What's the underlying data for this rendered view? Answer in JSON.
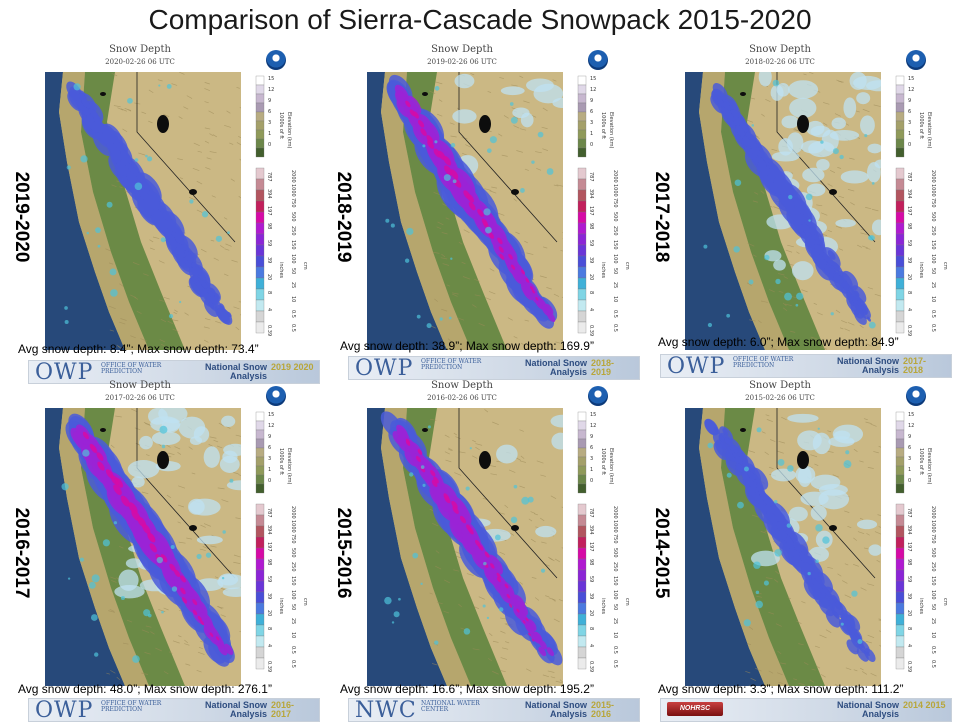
{
  "title": "Comparison of Sierra-Cascade Snowpack 2015-2020",
  "map_header": {
    "title": "Snow Depth"
  },
  "panels": [
    {
      "season": "2019-2020",
      "date": "2020-02-26 06 UTC",
      "stats": "Avg snow depth: 8.4”;  Max snow depth: 73.4”",
      "banner": {
        "logo": "OWP",
        "sub": "OFFICE OF WATER PREDICTION",
        "name": "National Snow Analysis",
        "year": "2019 2020"
      },
      "snow_intensity": 0.35,
      "pale_extent": 0.05
    },
    {
      "season": "2018-2019",
      "date": "2019-02-26 06 UTC",
      "stats": "Avg snow depth: 38.9”;  Max snow depth: 169.9”",
      "banner": {
        "logo": "OWP",
        "sub": "OFFICE OF WATER PREDICTION",
        "name": "National Snow Analysis",
        "year": "2018- 2019"
      },
      "snow_intensity": 0.85,
      "pale_extent": 0.2
    },
    {
      "season": "2017-2018",
      "date": "2018-02-26 06 UTC",
      "stats": "Avg snow depth: 6.0”;  Max snow depth: 84.9”",
      "banner": {
        "logo": "OWP",
        "sub": "OFFICE OF WATER PREDICTION",
        "name": "National Snow Analysis",
        "year": "2017- 2018"
      },
      "snow_intensity": 0.3,
      "pale_extent": 0.7
    },
    {
      "season": "2016-2017",
      "date": "2017-02-26 06 UTC",
      "stats": "Avg snow depth: 48.0”;  Max snow depth: 276.1”",
      "banner": {
        "logo": "OWP",
        "sub": "OFFICE OF WATER PREDICTION",
        "name": "National Snow Analysis",
        "year": "2016- 2017"
      },
      "snow_intensity": 0.95,
      "pale_extent": 0.6
    },
    {
      "season": "2015-2016",
      "date": "2016-02-26 06 UTC",
      "stats": "Avg snow depth: 16.6”;  Max snow depth: 195.2”",
      "banner": {
        "logo": "NWC",
        "sub": "NATIONAL WATER CENTER",
        "name": "National Snow Analysis",
        "year": "2015- 2016"
      },
      "snow_intensity": 0.7,
      "pale_extent": 0.1
    },
    {
      "season": "2014-2015",
      "date": "2015-02-26 06 UTC",
      "stats": "Avg snow depth: 3.3”;  Max snow depth: 111.2”",
      "banner": {
        "logo": "NOHRSC",
        "sub": "",
        "name": "National Snow Analysis",
        "year": "2014 2015"
      },
      "snow_intensity": 0.2,
      "pale_extent": 0.4
    }
  ],
  "legend": {
    "elevation_ticks_ft": [
      "15",
      "12",
      "9",
      "6",
      "3",
      "1",
      "0"
    ],
    "elevation_unit_ft": "1000s of ft",
    "elevation_unit_km": "Elevation (km)",
    "snow_ticks_in": [
      "787",
      "394",
      "197",
      "98",
      "59",
      "39",
      "20",
      "8",
      "4",
      "0.39"
    ],
    "snow_ticks_cm": [
      "2000",
      "1000",
      "750",
      "500",
      "250",
      "150",
      "100",
      "50",
      "25",
      "10",
      "0.5",
      "0.5"
    ],
    "unit_in": "inches",
    "unit_cm": "cm"
  },
  "colors": {
    "ocean": "#27497a",
    "valley": "#6b8a46",
    "foothill": "#b6a66d",
    "mountain": "#cbb884",
    "snow_pale": "#bfe2f2",
    "snow_light": "#4ec3da",
    "snow_mid": "#4a5ad9",
    "snow_deep": "#9a24d6",
    "snow_max": "#d60aa6"
  }
}
